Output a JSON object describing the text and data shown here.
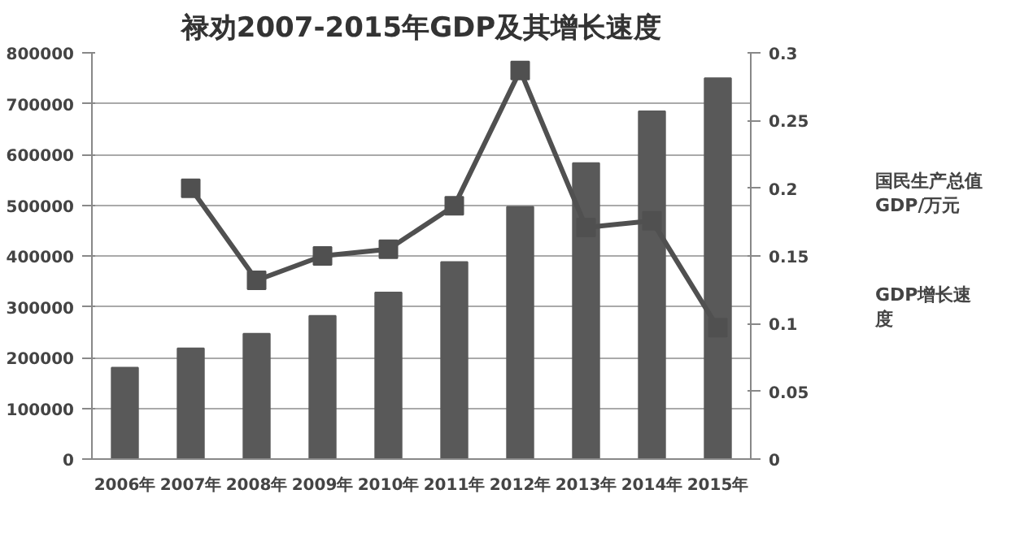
{
  "chart_data": {
    "type": "bar",
    "title": "禄劝2007-2015年GDP及其增长速度",
    "categories": [
      "2006年",
      "2007年",
      "2008年",
      "2009年",
      "2010年",
      "2011年",
      "2012年",
      "2013年",
      "2014年",
      "2015年"
    ],
    "series": [
      {
        "name": "国民生产总值GDP/万元",
        "color": "#595959",
        "values": [
          180000,
          218000,
          247000,
          282000,
          328000,
          388000,
          497000,
          583000,
          685000,
          750000
        ]
      },
      {
        "name": "GDP增长速度",
        "type": "line",
        "axis": "y2",
        "color": "#505050",
        "marker": "square",
        "values": [
          null,
          0.2,
          0.132,
          0.15,
          0.155,
          0.187,
          0.287,
          0.171,
          0.176,
          0.097
        ]
      }
    ],
    "ylim": [
      0,
      800000
    ],
    "yticks": [
      0,
      100000,
      200000,
      300000,
      400000,
      500000,
      600000,
      700000,
      800000
    ],
    "y2lim": [
      0,
      0.3
    ],
    "y2ticks": [
      0,
      {
        "value": 0.05,
        "label": "0.05"
      },
      {
        "value": 0.1,
        "label": "0.1"
      },
      {
        "value": 0.15,
        "label": "0.15"
      },
      {
        "value": 0.2,
        "label": "0.2"
      },
      {
        "value": 0.25,
        "label": "0.25"
      },
      {
        "value": 0.3,
        "label": "0.3"
      }
    ],
    "grid": "y",
    "legend": "right"
  }
}
